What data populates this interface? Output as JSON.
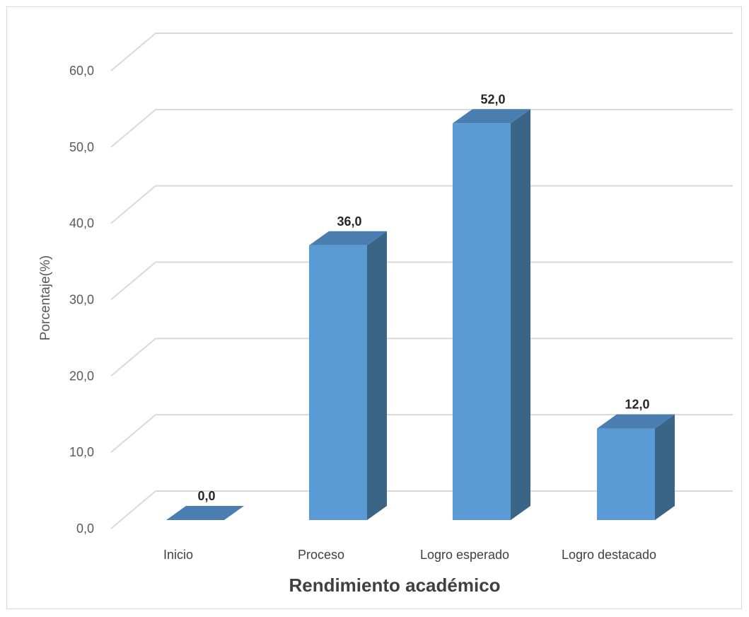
{
  "chart_data": {
    "type": "bar",
    "title": "",
    "xlabel": "Rendimiento académico",
    "ylabel": "Porcentaje(%)",
    "categories": [
      "Inicio",
      "Proceso",
      "Logro esperado",
      "Logro destacado"
    ],
    "values": [
      0.0,
      36.0,
      52.0,
      12.0
    ],
    "data_labels": [
      "0,0",
      "36,0",
      "52,0",
      "12,0"
    ],
    "y_ticks": [
      "0,0",
      "10,0",
      "20,0",
      "30,0",
      "40,0",
      "50,0",
      "60,0"
    ],
    "ylim": [
      0,
      60
    ],
    "grid": true,
    "style": "3d-column",
    "colors": {
      "front": "#5b9bd5",
      "side": "#3a6587",
      "top": "#4a7eb0",
      "grid": "#d9d9d9"
    }
  }
}
